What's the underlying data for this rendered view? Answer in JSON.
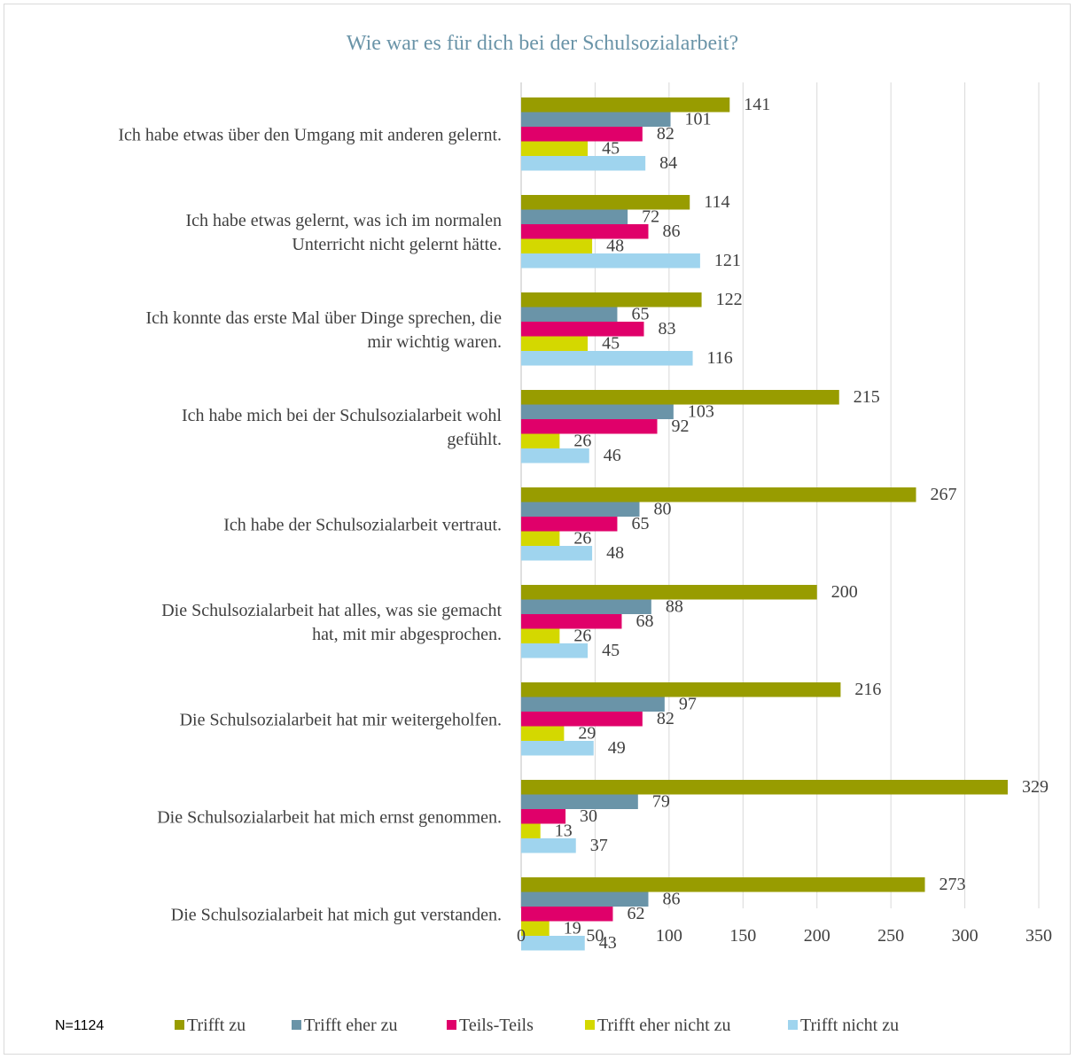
{
  "chart_data": {
    "type": "bar",
    "orientation": "horizontal",
    "title": "Wie war es für dich bei der Schulsozialarbeit?",
    "note": "N=1124",
    "categories": [
      "Ich habe etwas über den Umgang mit anderen gelernt.",
      "Ich habe etwas gelernt, was ich im normalen Unterricht nicht gelernt hätte.",
      "Ich konnte das erste Mal über Dinge sprechen, die mir wichtig waren.",
      "Ich habe mich bei der Schulsozialarbeit wohl gefühlt.",
      "Ich habe der Schulsozialarbeit vertraut.",
      "Die Schulsozialarbeit hat alles, was sie gemacht hat, mit mir abgesprochen.",
      "Die Schulsozialarbeit hat mir weitergeholfen.",
      "Die Schulsozialarbeit hat mich ernst genommen.",
      "Die Schulsozialarbeit hat mich gut verstanden."
    ],
    "series": [
      {
        "name": "Trifft zu",
        "color": "#989c00",
        "values": [
          141,
          114,
          122,
          215,
          267,
          200,
          216,
          329,
          273
        ]
      },
      {
        "name": "Trifft eher zu",
        "color": "#6a94a8",
        "values": [
          101,
          72,
          65,
          103,
          80,
          88,
          97,
          79,
          86
        ]
      },
      {
        "name": "Teils-Teils",
        "color": "#e0006a",
        "values": [
          82,
          86,
          83,
          92,
          65,
          68,
          82,
          30,
          62
        ]
      },
      {
        "name": "Trifft eher nicht zu",
        "color": "#d4d800",
        "values": [
          45,
          48,
          45,
          26,
          26,
          26,
          29,
          13,
          19
        ]
      },
      {
        "name": "Trifft nicht zu",
        "color": "#9fd4ee",
        "values": [
          84,
          121,
          116,
          46,
          48,
          45,
          49,
          37,
          43
        ]
      }
    ],
    "xlim": [
      0,
      350
    ],
    "xticks": [
      0,
      50,
      100,
      150,
      200,
      250,
      300,
      350
    ],
    "grid": true,
    "legend_position": "bottom",
    "title_color": "#6a94a8"
  }
}
